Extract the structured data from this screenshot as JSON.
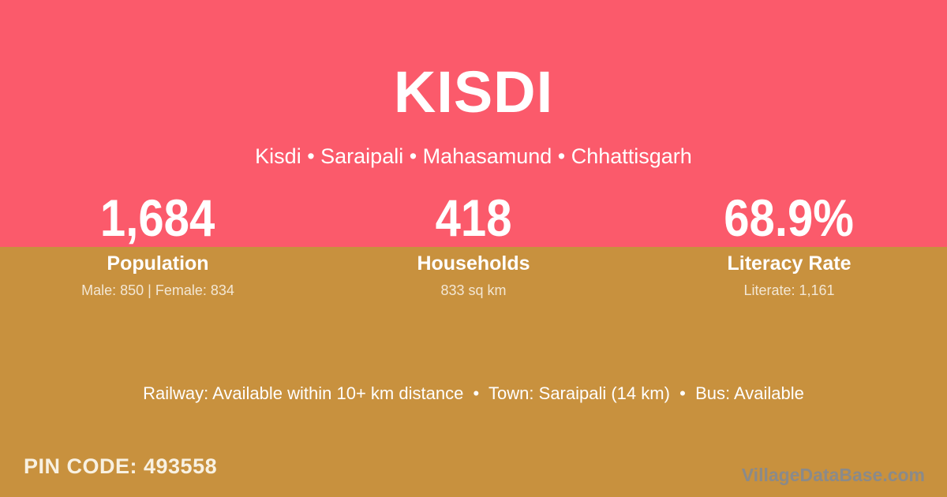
{
  "theme": {
    "top_band_color": "#fb5a6b",
    "bottom_band_color": "#c8913e",
    "primary_text_color": "#ffffff",
    "muted_text_color": "rgba(255,255,255,0.78)",
    "pin_text_color": "#f8f1e2",
    "watermark_color": "#8a8a8a"
  },
  "header": {
    "title": "KISDI",
    "breadcrumb": "Kisdi • Saraipali • Mahasamund • Chhattisgarh"
  },
  "stats": [
    {
      "value": "1,684",
      "label": "Population",
      "detail": "Male: 850 | Female: 834"
    },
    {
      "value": "418",
      "label": "Households",
      "detail": "833 sq km"
    },
    {
      "value": "68.9%",
      "label": "Literacy Rate",
      "detail": "Literate: 1,161"
    }
  ],
  "transport_line": "Railway: Available within 10+ km distance  •  Town: Saraipali (14 km)  •  Bus: Available",
  "footer": {
    "pin_code": "PIN CODE: 493558",
    "watermark": "VillageDataBase.com"
  }
}
